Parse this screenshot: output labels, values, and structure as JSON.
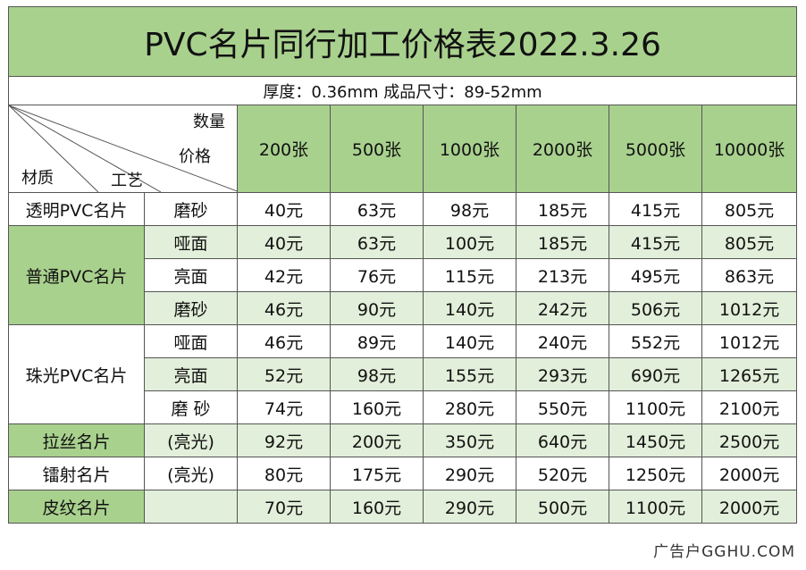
{
  "title": "PVC名片同行加工价格表2022.3.26",
  "subtitle": "厚度：0.36mm  成品尺寸：89-52mm",
  "header": {
    "corner_qty": "数量",
    "corner_price": "价格",
    "corner_material": "材质",
    "corner_process": "工艺",
    "quantities": [
      "200张",
      "500张",
      "1000张",
      "2000张",
      "5000张",
      "10000张"
    ]
  },
  "groups": [
    {
      "material": "透明PVC名片",
      "rows": [
        {
          "process": "磨砂",
          "prices": [
            "40元",
            "63元",
            "98元",
            "185元",
            "415元",
            "805元"
          ]
        }
      ]
    },
    {
      "material": "普通PVC名片",
      "rows": [
        {
          "process": "哑面",
          "prices": [
            "40元",
            "63元",
            "100元",
            "185元",
            "415元",
            "805元"
          ]
        },
        {
          "process": "亮面",
          "prices": [
            "42元",
            "76元",
            "115元",
            "213元",
            "495元",
            "863元"
          ]
        },
        {
          "process": "磨砂",
          "prices": [
            "46元",
            "90元",
            "140元",
            "242元",
            "506元",
            "1012元"
          ]
        }
      ]
    },
    {
      "material": "珠光PVC名片",
      "rows": [
        {
          "process": "哑面",
          "prices": [
            "46元",
            "89元",
            "140元",
            "240元",
            "552元",
            "1012元"
          ]
        },
        {
          "process": "亮面",
          "prices": [
            "52元",
            "98元",
            "155元",
            "293元",
            "690元",
            "1265元"
          ]
        },
        {
          "process": "磨 砂",
          "prices": [
            "74元",
            "160元",
            "280元",
            "550元",
            "1100元",
            "2100元"
          ]
        }
      ]
    },
    {
      "material": "拉丝名片",
      "rows": [
        {
          "process": "(亮光)",
          "prices": [
            "92元",
            "200元",
            "350元",
            "640元",
            "1450元",
            "2500元"
          ]
        }
      ]
    },
    {
      "material": "镭射名片",
      "rows": [
        {
          "process": "(亮光)",
          "prices": [
            "80元",
            "175元",
            "290元",
            "520元",
            "1250元",
            "2000元"
          ]
        }
      ]
    },
    {
      "material": "皮纹名片",
      "rows": [
        {
          "process": "",
          "prices": [
            "70元",
            "160元",
            "290元",
            "500元",
            "1100元",
            "2000元"
          ]
        }
      ]
    }
  ],
  "watermark": "广告户GGHU.COM",
  "colors": {
    "header_green": "#a9d18e",
    "light_green": "#e2efda",
    "white": "#ffffff"
  }
}
